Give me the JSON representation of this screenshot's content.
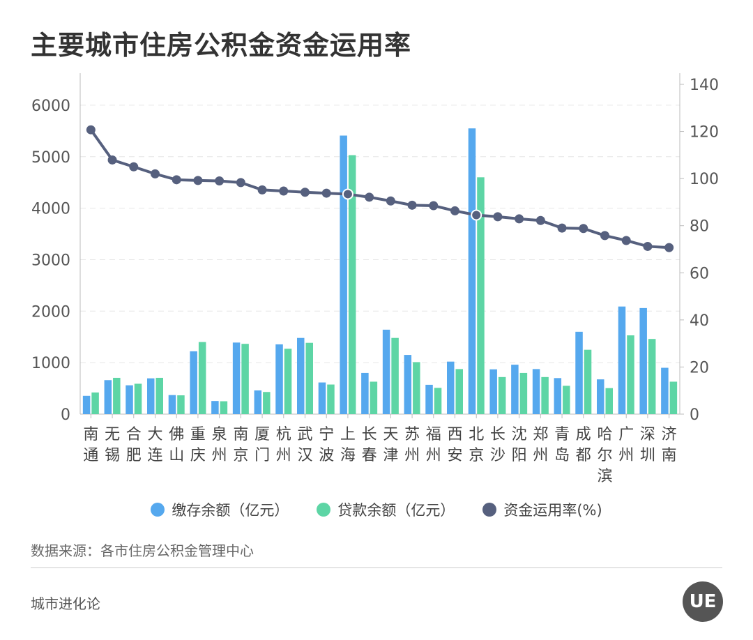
{
  "title": "主要城市住房公积金资金运用率",
  "source": "数据来源：各市住房公积金管理中心",
  "footer": "城市进化论",
  "logo_text": "UE",
  "colors": {
    "deposit": "#55a8ee",
    "loan": "#5dd5a5",
    "rate": "#56607e"
  },
  "chart_data": {
    "type": "bar+line",
    "categories": [
      "南通",
      "无锡",
      "合肥",
      "大连",
      "佛山",
      "重庆",
      "泉州",
      "南京",
      "厦门",
      "杭州",
      "武汉",
      "宁波",
      "上海",
      "长春",
      "天津",
      "苏州",
      "福州",
      "西安",
      "北京",
      "长沙",
      "沈阳",
      "郑州",
      "青岛",
      "成都",
      "哈尔滨",
      "广州",
      "深圳",
      "济南"
    ],
    "series": [
      {
        "name": "缴存余额（亿元）",
        "axis": "left",
        "type": "bar",
        "values": [
          355,
          660,
          560,
          695,
          370,
          1220,
          255,
          1390,
          460,
          1355,
          1480,
          615,
          5410,
          800,
          1640,
          1150,
          570,
          1020,
          5550,
          870,
          960,
          875,
          700,
          1600,
          675,
          2090,
          2060,
          900
        ]
      },
      {
        "name": "贷款余额（亿元）",
        "axis": "left",
        "type": "bar",
        "values": [
          420,
          705,
          590,
          705,
          365,
          1400,
          250,
          1365,
          430,
          1270,
          1385,
          575,
          5030,
          630,
          1480,
          1010,
          510,
          875,
          4600,
          720,
          800,
          720,
          550,
          1250,
          505,
          1530,
          1460,
          630
        ]
      },
      {
        "name": "资金运用率(%)",
        "axis": "right",
        "type": "line",
        "values": [
          120.7,
          107.9,
          105,
          102,
          99.5,
          99.2,
          99,
          98.3,
          95.2,
          94.7,
          94.2,
          93.8,
          93.4,
          92.1,
          90.5,
          88.7,
          88.5,
          86.3,
          84.5,
          83.8,
          82.9,
          82.2,
          79,
          78.8,
          75.8,
          73.7,
          71.2,
          70.7
        ]
      }
    ],
    "y_left": {
      "ticks": [
        "0",
        "1000",
        "2000",
        "3000",
        "4000",
        "5000",
        "6000"
      ],
      "range": [
        0,
        6500
      ]
    },
    "y_right": {
      "ticks": [
        "0",
        "20",
        "40",
        "60",
        "80",
        "100",
        "120",
        "140"
      ],
      "range": [
        0,
        140
      ]
    },
    "grid": true,
    "legend": "bottom"
  }
}
